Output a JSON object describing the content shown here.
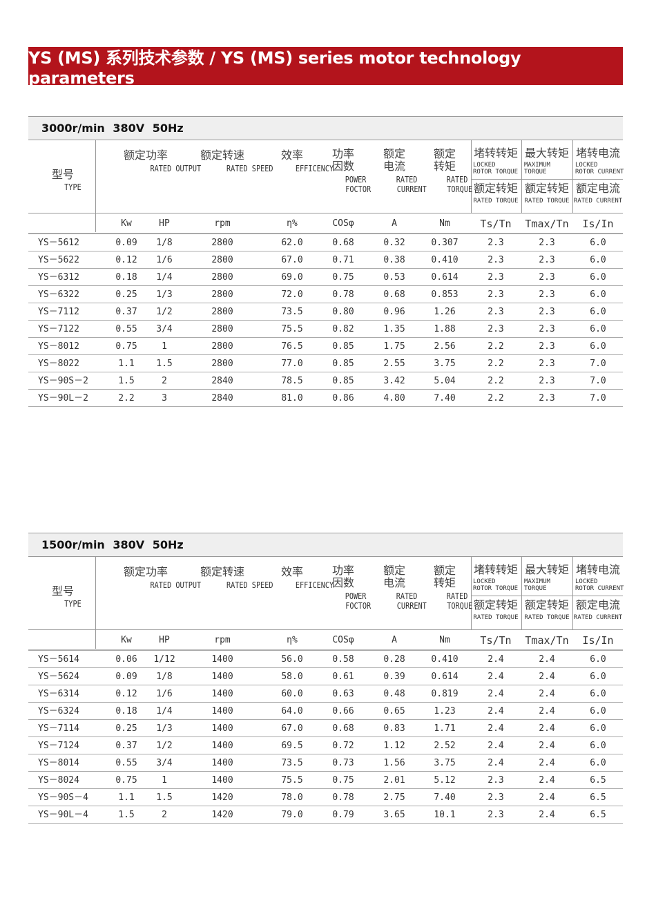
{
  "banner": {
    "title": "YS (MS) 系列技术参数 / YS (MS) series motor technology parameters",
    "color": "#b3141c"
  },
  "header": {
    "type_cn": "型号",
    "type_en": "TYPE",
    "output_cn": "额定功率",
    "output_en": "RATED OUTPUT",
    "speed_cn": "额定转速",
    "speed_en": "RATED SPEED",
    "eff_cn": "效率",
    "eff_en": "EFFICENCY",
    "pf_cn1": "功率",
    "pf_cn2": "因数",
    "pf_en1": "POWER",
    "pf_en2": "FOCTOR",
    "cur_cn1": "额定",
    "cur_cn2": "电流",
    "cur_en1": "RATED",
    "cur_en2": "CURRENT",
    "tor_cn1": "额定",
    "tor_cn2": "转矩",
    "tor_en1": "RATED",
    "tor_en2": "TORQUE",
    "ts_top_cn": "堵转转矩",
    "ts_top_en1": "LOCKED",
    "ts_top_en2": "ROTOR TORQUE",
    "ts_bot_cn": "额定转矩",
    "ts_bot_en": "RATED TORQUE",
    "tmax_top_cn": "最大转矩",
    "tmax_top_en1": "MAXIMUM",
    "tmax_top_en2": "TORQUE",
    "tmax_bot_cn": "额定转矩",
    "tmax_bot_en": "RATED TORQUE",
    "is_top_cn": "堵转电流",
    "is_top_en1": "LOCKED",
    "is_top_en2": "ROTOR CURRENT",
    "is_bot_cn": "额定电流",
    "is_bot_en": "RATED CURRENT"
  },
  "units": [
    "Kw",
    "HP",
    "rpm",
    "η%",
    "COSφ",
    "A",
    "Nm",
    "Ts/Tn",
    "Tmax/Tn",
    "Is/In"
  ],
  "tables": [
    {
      "title": "3000r/min  380V  50Hz",
      "rows": [
        [
          "YS－5612",
          "0.09",
          "1/8",
          "2800",
          "62.0",
          "0.68",
          "0.32",
          "0.307",
          "2.3",
          "2.3",
          "6.0"
        ],
        [
          "YS－5622",
          "0.12",
          "1/6",
          "2800",
          "67.0",
          "0.71",
          "0.38",
          "0.410",
          "2.3",
          "2.3",
          "6.0"
        ],
        [
          "YS－6312",
          "0.18",
          "1/4",
          "2800",
          "69.0",
          "0.75",
          "0.53",
          "0.614",
          "2.3",
          "2.3",
          "6.0"
        ],
        [
          "YS－6322",
          "0.25",
          "1/3",
          "2800",
          "72.0",
          "0.78",
          "0.68",
          "0.853",
          "2.3",
          "2.3",
          "6.0"
        ],
        [
          "YS－7112",
          "0.37",
          "1/2",
          "2800",
          "73.5",
          "0.80",
          "0.96",
          "1.26",
          "2.3",
          "2.3",
          "6.0"
        ],
        [
          "YS－7122",
          "0.55",
          "3/4",
          "2800",
          "75.5",
          "0.82",
          "1.35",
          "1.88",
          "2.3",
          "2.3",
          "6.0"
        ],
        [
          "YS－8012",
          "0.75",
          "1",
          "2800",
          "76.5",
          "0.85",
          "1.75",
          "2.56",
          "2.2",
          "2.3",
          "6.0"
        ],
        [
          "YS－8022",
          "1.1",
          "1.5",
          "2800",
          "77.0",
          "0.85",
          "2.55",
          "3.75",
          "2.2",
          "2.3",
          "7.0"
        ],
        [
          "YS－90S－2",
          "1.5",
          "2",
          "2840",
          "78.5",
          "0.85",
          "3.42",
          "5.04",
          "2.2",
          "2.3",
          "7.0"
        ],
        [
          "YS－90L－2",
          "2.2",
          "3",
          "2840",
          "81.0",
          "0.86",
          "4.80",
          "7.40",
          "2.2",
          "2.3",
          "7.0"
        ]
      ]
    },
    {
      "title": "1500r/min  380V  50Hz",
      "rows": [
        [
          "YS－5614",
          "0.06",
          "1/12",
          "1400",
          "56.0",
          "0.58",
          "0.28",
          "0.410",
          "2.4",
          "2.4",
          "6.0"
        ],
        [
          "YS－5624",
          "0.09",
          "1/8",
          "1400",
          "58.0",
          "0.61",
          "0.39",
          "0.614",
          "2.4",
          "2.4",
          "6.0"
        ],
        [
          "YS－6314",
          "0.12",
          "1/6",
          "1400",
          "60.0",
          "0.63",
          "0.48",
          "0.819",
          "2.4",
          "2.4",
          "6.0"
        ],
        [
          "YS－6324",
          "0.18",
          "1/4",
          "1400",
          "64.0",
          "0.66",
          "0.65",
          "1.23",
          "2.4",
          "2.4",
          "6.0"
        ],
        [
          "YS－7114",
          "0.25",
          "1/3",
          "1400",
          "67.0",
          "0.68",
          "0.83",
          "1.71",
          "2.4",
          "2.4",
          "6.0"
        ],
        [
          "YS－7124",
          "0.37",
          "1/2",
          "1400",
          "69.5",
          "0.72",
          "1.12",
          "2.52",
          "2.4",
          "2.4",
          "6.0"
        ],
        [
          "YS－8014",
          "0.55",
          "3/4",
          "1400",
          "73.5",
          "0.73",
          "1.56",
          "3.75",
          "2.4",
          "2.4",
          "6.0"
        ],
        [
          "YS－8024",
          "0.75",
          "1",
          "1400",
          "75.5",
          "0.75",
          "2.01",
          "5.12",
          "2.3",
          "2.4",
          "6.5"
        ],
        [
          "YS－90S－4",
          "1.1",
          "1.5",
          "1420",
          "78.0",
          "0.78",
          "2.75",
          "7.40",
          "2.3",
          "2.4",
          "6.5"
        ],
        [
          "YS－90L－4",
          "1.5",
          "2",
          "1420",
          "79.0",
          "0.79",
          "3.65",
          "10.1",
          "2.3",
          "2.4",
          "6.5"
        ]
      ]
    }
  ]
}
